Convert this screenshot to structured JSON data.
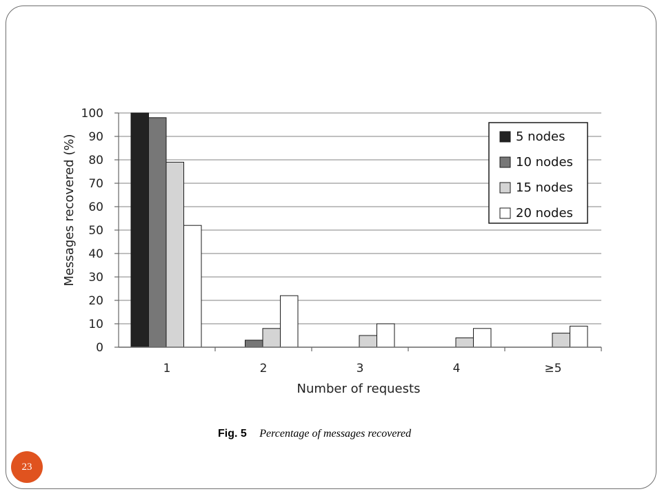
{
  "chart_data": {
    "type": "bar",
    "categories": [
      "1",
      "2",
      "3",
      "4",
      "≥5"
    ],
    "series": [
      {
        "name": "5 nodes",
        "values": [
          100,
          0,
          0,
          0,
          0
        ],
        "color": "#222222"
      },
      {
        "name": "10 nodes",
        "values": [
          98,
          3,
          0,
          0,
          0
        ],
        "color": "#777777"
      },
      {
        "name": "15 nodes",
        "values": [
          79,
          8,
          5,
          4,
          6
        ],
        "color": "#d4d4d4"
      },
      {
        "name": "20 nodes",
        "values": [
          52,
          22,
          10,
          8,
          9
        ],
        "color": "#ffffff"
      }
    ],
    "xlabel": "Number of requests",
    "ylabel": "Messages recovered (%)",
    "ylim": [
      0,
      100
    ],
    "yticks": [
      0,
      10,
      20,
      30,
      40,
      50,
      60,
      70,
      80,
      90,
      100
    ],
    "grid": true,
    "legend": "top-right"
  },
  "caption": {
    "fig_label": "Fig. 5",
    "text": "Percentage of messages recovered"
  },
  "slide": {
    "page_number": "23",
    "badge_color": "#e0531f"
  }
}
